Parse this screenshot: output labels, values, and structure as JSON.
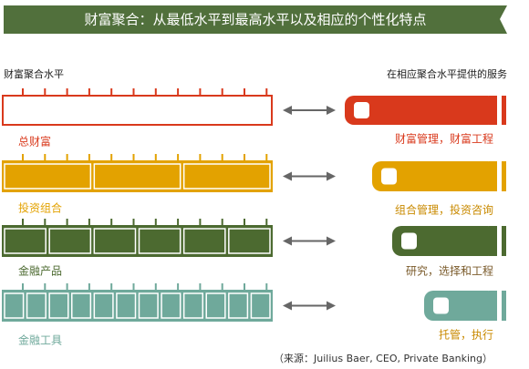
{
  "header": {
    "title": "财富聚合：从最低水平到最高水平以及相应的个性化特点"
  },
  "left_heading": "财富聚合水平",
  "right_heading": "在相应聚合水平提供的服务",
  "rows": [
    {
      "label": "总财富",
      "service": "财富管理，财富工程"
    },
    {
      "label": "投资组合",
      "service": "组合管理，投资咨询"
    },
    {
      "label": "金融产品",
      "service": "研究，选择和工程"
    },
    {
      "label": "金融工具",
      "service": "托管，执行"
    }
  ],
  "source": "（来源：Juilius Baer, CEO, Private Banking）"
}
